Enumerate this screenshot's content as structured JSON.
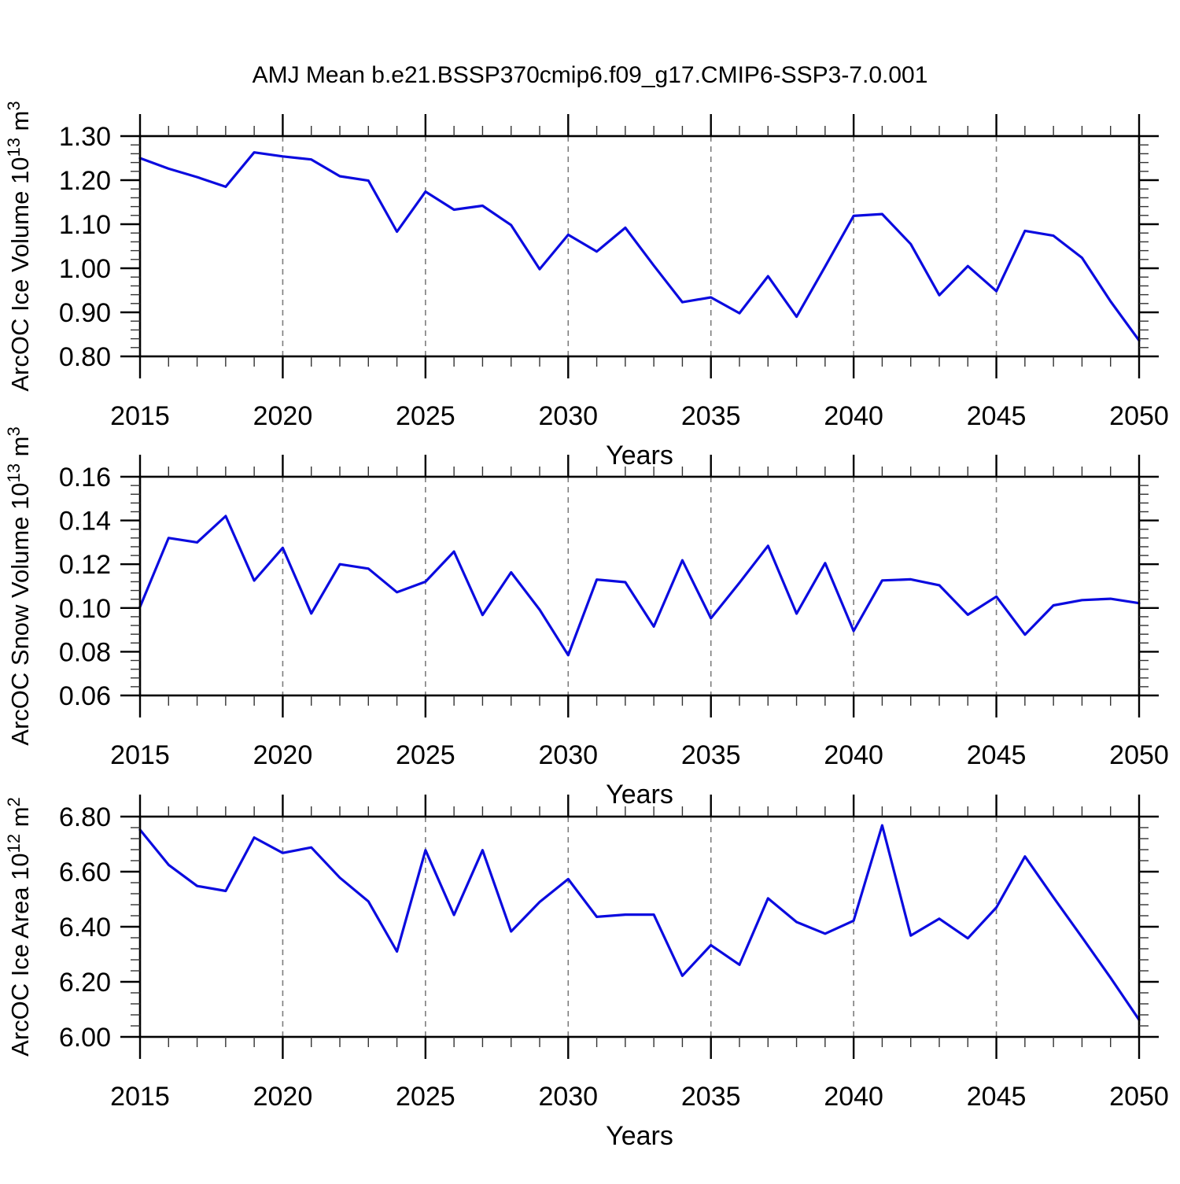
{
  "title": "AMJ Mean b.e21.BSSP370cmip6.f09_g17.CMIP6-SSP3-7.0.001",
  "colors": {
    "line": "#0b0bdf",
    "grid": "#7d7d7d",
    "axis": "#000000",
    "minor_tick": "#333333"
  },
  "chart_data": [
    {
      "type": "line",
      "id": "ice-volume",
      "ylabel_parts": [
        {
          "text": "ArcOC Ice Volume 10"
        },
        {
          "text": "13",
          "sup": true
        },
        {
          "text": " m"
        },
        {
          "text": "3",
          "sup": true
        }
      ],
      "xlabel": "Years",
      "xlim": [
        2015,
        2050
      ],
      "ylim": [
        0.8,
        1.3
      ],
      "ytick_major": 0.1,
      "ytick_minor": 0.02,
      "ytick_labels": [
        "1.30",
        "1.20",
        "1.10",
        "1.00",
        "0.90",
        "0.80"
      ],
      "xtick_major_step": 5,
      "xtick_minor_step": 1,
      "xtick_labels": [
        "2015",
        "2020",
        "2025",
        "2030",
        "2035",
        "2040",
        "2045",
        "2050"
      ],
      "grid_years": [
        2020,
        2025,
        2030,
        2035,
        2040,
        2045
      ],
      "x": [
        2015,
        2016,
        2017,
        2018,
        2019,
        2020,
        2021,
        2022,
        2023,
        2024,
        2025,
        2026,
        2027,
        2028,
        2029,
        2030,
        2031,
        2032,
        2033,
        2034,
        2035,
        2036,
        2037,
        2038,
        2039,
        2040,
        2041,
        2042,
        2043,
        2044,
        2045,
        2046,
        2047,
        2048,
        2049,
        2050
      ],
      "values": [
        1.25,
        1.226,
        1.207,
        1.185,
        1.263,
        1.254,
        1.247,
        1.209,
        1.199,
        1.083,
        1.174,
        1.133,
        1.142,
        1.098,
        0.998,
        1.076,
        1.038,
        1.092,
        1.006,
        0.923,
        0.934,
        0.898,
        0.982,
        0.89,
        1.004,
        1.119,
        1.123,
        1.055,
        0.939,
        1.005,
        0.948,
        1.085,
        1.074,
        1.024,
        0.925,
        0.836
      ]
    },
    {
      "type": "line",
      "id": "snow-volume",
      "ylabel_parts": [
        {
          "text": "ArcOC Snow Volume 10"
        },
        {
          "text": "13",
          "sup": true
        },
        {
          "text": " m"
        },
        {
          "text": "3",
          "sup": true
        }
      ],
      "xlabel": "Years",
      "xlim": [
        2015,
        2050
      ],
      "ylim": [
        0.06,
        0.16
      ],
      "ytick_major": 0.02,
      "ytick_minor": 0.004,
      "ytick_labels": [
        "0.16",
        "0.14",
        "0.12",
        "0.10",
        "0.08",
        "0.06"
      ],
      "xtick_major_step": 5,
      "xtick_minor_step": 1,
      "xtick_labels": [
        "2015",
        "2020",
        "2025",
        "2030",
        "2035",
        "2040",
        "2045",
        "2050"
      ],
      "grid_years": [
        2020,
        2025,
        2030,
        2035,
        2040,
        2045
      ],
      "x": [
        2015,
        2016,
        2017,
        2018,
        2019,
        2020,
        2021,
        2022,
        2023,
        2024,
        2025,
        2026,
        2027,
        2028,
        2029,
        2030,
        2031,
        2032,
        2033,
        2034,
        2035,
        2036,
        2037,
        2038,
        2039,
        2040,
        2041,
        2042,
        2043,
        2044,
        2045,
        2046,
        2047,
        2048,
        2049,
        2050
      ],
      "values": [
        0.1005,
        0.132,
        0.13,
        0.142,
        0.1125,
        0.1275,
        0.0975,
        0.12,
        0.118,
        0.1072,
        0.112,
        0.1258,
        0.0968,
        0.1163,
        0.0992,
        0.0784,
        0.113,
        0.1118,
        0.0915,
        0.1218,
        0.0953,
        0.1115,
        0.1284,
        0.0974,
        0.1205,
        0.0895,
        0.1126,
        0.1131,
        0.1104,
        0.0969,
        0.1052,
        0.0878,
        0.1012,
        0.1036,
        0.1042,
        0.1022
      ]
    },
    {
      "type": "line",
      "id": "ice-area",
      "ylabel_parts": [
        {
          "text": "ArcOC Ice Area 10"
        },
        {
          "text": "12",
          "sup": true
        },
        {
          "text": " m"
        },
        {
          "text": "2",
          "sup": true
        }
      ],
      "xlabel": "Years",
      "xlim": [
        2015,
        2050
      ],
      "ylim": [
        6.0,
        6.8
      ],
      "ytick_major": 0.2,
      "ytick_minor": 0.04,
      "ytick_labels": [
        "6.80",
        "6.60",
        "6.40",
        "6.20",
        "6.00"
      ],
      "xtick_major_step": 5,
      "xtick_minor_step": 1,
      "xtick_labels": [
        "2015",
        "2020",
        "2025",
        "2030",
        "2035",
        "2040",
        "2045",
        "2050"
      ],
      "grid_years": [
        2020,
        2025,
        2030,
        2035,
        2040,
        2045
      ],
      "x": [
        2015,
        2016,
        2017,
        2018,
        2019,
        2020,
        2021,
        2022,
        2023,
        2024,
        2025,
        2026,
        2027,
        2028,
        2029,
        2030,
        2031,
        2032,
        2033,
        2034,
        2035,
        2036,
        2037,
        2038,
        2039,
        2040,
        2041,
        2042,
        2043,
        2044,
        2045,
        2046,
        2047,
        2048,
        2049,
        2050
      ],
      "values": [
        6.752,
        6.625,
        6.548,
        6.53,
        6.724,
        6.668,
        6.688,
        6.578,
        6.492,
        6.31,
        6.678,
        6.443,
        6.678,
        6.383,
        6.49,
        6.573,
        6.436,
        6.444,
        6.444,
        6.222,
        6.333,
        6.262,
        6.503,
        6.417,
        6.375,
        6.422,
        6.768,
        6.368,
        6.429,
        6.358,
        6.47,
        6.655,
        6.507,
        6.362,
        6.215,
        6.062
      ]
    }
  ]
}
